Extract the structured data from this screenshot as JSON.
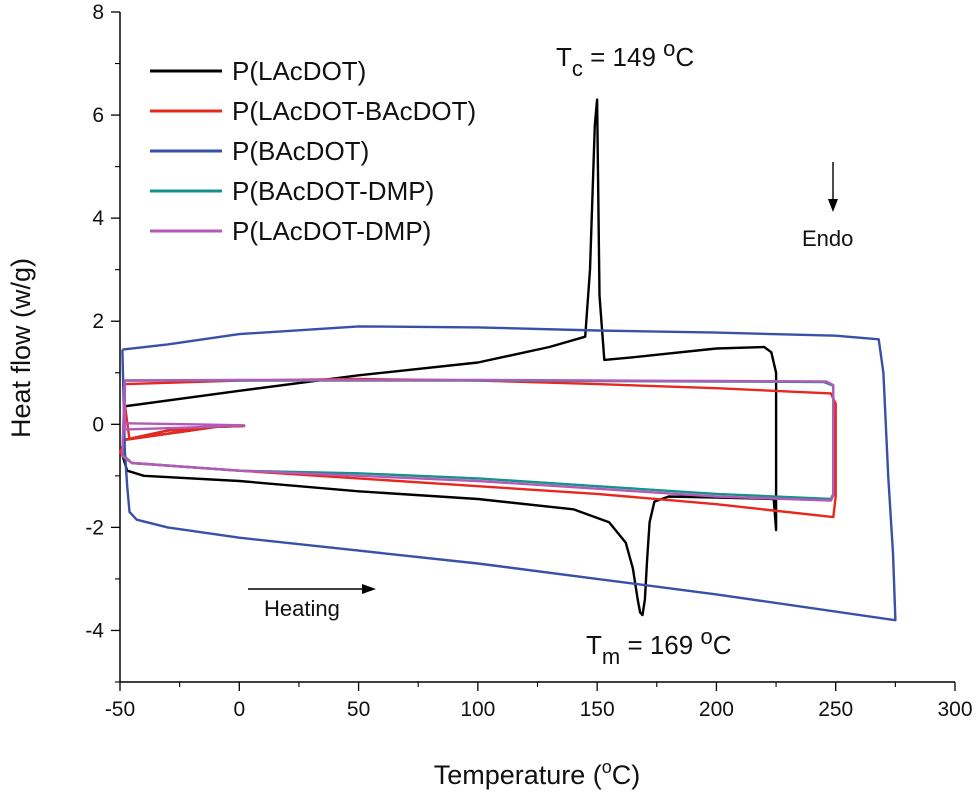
{
  "chart_data": {
    "type": "line",
    "title": "",
    "xlabel": "Temperature (°C)",
    "ylabel": "Heat flow (w/g)",
    "xlim": [
      -50,
      300
    ],
    "ylim": [
      -5,
      8
    ],
    "xticks": [
      -50,
      0,
      50,
      100,
      150,
      200,
      250,
      300
    ],
    "yticks": [
      -4,
      -2,
      0,
      2,
      4,
      6,
      8
    ],
    "xtick_labels": [
      "-50",
      "0",
      "50",
      "100",
      "150",
      "200",
      "250",
      "300"
    ],
    "ytick_labels": [
      "-4",
      "-2",
      "0",
      "2",
      "4",
      "6",
      "8"
    ],
    "grid": false,
    "legend_position": "top-left",
    "annotations": {
      "tc": {
        "pre": "T",
        "sub": "c",
        "eq": " = 149 ",
        "sup": "o",
        "unit": "C"
      },
      "tm": {
        "pre": "T",
        "sub": "m",
        "eq": " = 169 ",
        "sup": "o",
        "unit": "C"
      },
      "endo": "Endo",
      "heating": "Heating"
    },
    "series": [
      {
        "name": "P(LAcDOT)",
        "color": "#000000",
        "points": [
          [
            -48,
            -0.3
          ],
          [
            -30,
            -0.12
          ],
          [
            -10,
            -0.04
          ],
          [
            2,
            -0.03
          ],
          [
            -10,
            -0.05
          ],
          [
            -48,
            -0.3
          ],
          [
            -49,
            -0.6
          ],
          [
            -47,
            -0.9
          ],
          [
            -40,
            -1.0
          ],
          [
            0,
            -1.1
          ],
          [
            50,
            -1.3
          ],
          [
            100,
            -1.45
          ],
          [
            140,
            -1.65
          ],
          [
            155,
            -1.9
          ],
          [
            162,
            -2.3
          ],
          [
            165,
            -2.8
          ],
          [
            167,
            -3.4
          ],
          [
            168,
            -3.65
          ],
          [
            169,
            -3.7
          ],
          [
            170,
            -3.4
          ],
          [
            171,
            -2.6
          ],
          [
            172,
            -1.9
          ],
          [
            174,
            -1.5
          ],
          [
            180,
            -1.4
          ],
          [
            200,
            -1.42
          ],
          [
            224,
            -1.45
          ],
          [
            225,
            -2.05
          ],
          [
            225,
            1.0
          ],
          [
            223,
            1.4
          ],
          [
            220,
            1.5
          ],
          [
            200,
            1.47
          ],
          [
            165,
            1.3
          ],
          [
            153,
            1.25
          ],
          [
            151,
            2.5
          ],
          [
            150,
            6.3
          ],
          [
            149,
            5.8
          ],
          [
            147,
            3.0
          ],
          [
            145,
            1.7
          ],
          [
            130,
            1.5
          ],
          [
            100,
            1.2
          ],
          [
            50,
            0.95
          ],
          [
            0,
            0.65
          ],
          [
            -48,
            0.35
          ]
        ]
      },
      {
        "name": "P(LAcDOT-BAcDOT)",
        "color": "#e8281e",
        "points": [
          [
            -48,
            -0.3
          ],
          [
            -30,
            -0.12
          ],
          [
            -10,
            -0.05
          ],
          [
            2,
            -0.03
          ],
          [
            -10,
            -0.05
          ],
          [
            -48,
            -0.3
          ],
          [
            -50,
            -0.55
          ],
          [
            -45,
            -0.75
          ],
          [
            0,
            -0.9
          ],
          [
            50,
            -1.05
          ],
          [
            100,
            -1.2
          ],
          [
            150,
            -1.35
          ],
          [
            200,
            -1.55
          ],
          [
            249,
            -1.8
          ],
          [
            250,
            -1.4
          ],
          [
            250,
            0.4
          ],
          [
            248,
            0.6
          ],
          [
            200,
            0.7
          ],
          [
            150,
            0.78
          ],
          [
            100,
            0.85
          ],
          [
            50,
            0.88
          ],
          [
            0,
            0.85
          ],
          [
            -48,
            0.78
          ],
          [
            -48,
            0.4
          ],
          [
            -46,
            -0.3
          ]
        ]
      },
      {
        "name": "P(BAcDOT)",
        "color": "#3950a8",
        "points": [
          [
            -49,
            1.45
          ],
          [
            -30,
            1.55
          ],
          [
            0,
            1.75
          ],
          [
            50,
            1.9
          ],
          [
            100,
            1.88
          ],
          [
            150,
            1.82
          ],
          [
            200,
            1.78
          ],
          [
            250,
            1.72
          ],
          [
            268,
            1.65
          ],
          [
            270,
            1.0
          ],
          [
            272,
            -1.0
          ],
          [
            274,
            -2.5
          ],
          [
            275,
            -3.8
          ],
          [
            200,
            -3.3
          ],
          [
            150,
            -3.0
          ],
          [
            100,
            -2.7
          ],
          [
            50,
            -2.45
          ],
          [
            0,
            -2.2
          ],
          [
            -30,
            -2.0
          ],
          [
            -43,
            -1.85
          ],
          [
            -46,
            -1.7
          ],
          [
            -47,
            -1.2
          ],
          [
            -48,
            -0.5
          ],
          [
            -49,
            1.45
          ]
        ]
      },
      {
        "name": "P(BAcDOT-DMP)",
        "color": "#15928a",
        "points": [
          [
            -48,
            0.85
          ],
          [
            0,
            0.85
          ],
          [
            50,
            0.85
          ],
          [
            100,
            0.85
          ],
          [
            150,
            0.84
          ],
          [
            200,
            0.83
          ],
          [
            245,
            0.82
          ],
          [
            249,
            0.75
          ],
          [
            249,
            -1.35
          ],
          [
            248,
            -1.45
          ],
          [
            200,
            -1.35
          ],
          [
            150,
            -1.2
          ],
          [
            100,
            -1.05
          ],
          [
            50,
            -0.95
          ],
          [
            0,
            -0.9
          ],
          [
            -45,
            -0.75
          ],
          [
            -49,
            -0.6
          ],
          [
            -48,
            0.85
          ]
        ]
      },
      {
        "name": "P(LAcDOT-DMP)",
        "color": "#b35ab8",
        "points": [
          [
            -48,
            0.02
          ],
          [
            -20,
            0.0
          ],
          [
            2,
            -0.02
          ],
          [
            -20,
            -0.06
          ],
          [
            -48,
            -0.1
          ],
          [
            -48,
            0.85
          ],
          [
            0,
            0.86
          ],
          [
            50,
            0.86
          ],
          [
            100,
            0.86
          ],
          [
            150,
            0.85
          ],
          [
            200,
            0.84
          ],
          [
            246,
            0.83
          ],
          [
            249,
            0.76
          ],
          [
            249,
            -1.38
          ],
          [
            248,
            -1.48
          ],
          [
            200,
            -1.4
          ],
          [
            150,
            -1.25
          ],
          [
            100,
            -1.1
          ],
          [
            50,
            -1.0
          ],
          [
            0,
            -0.9
          ],
          [
            -45,
            -0.75
          ],
          [
            -49,
            -0.62
          ],
          [
            -48,
            0.85
          ]
        ]
      }
    ]
  }
}
